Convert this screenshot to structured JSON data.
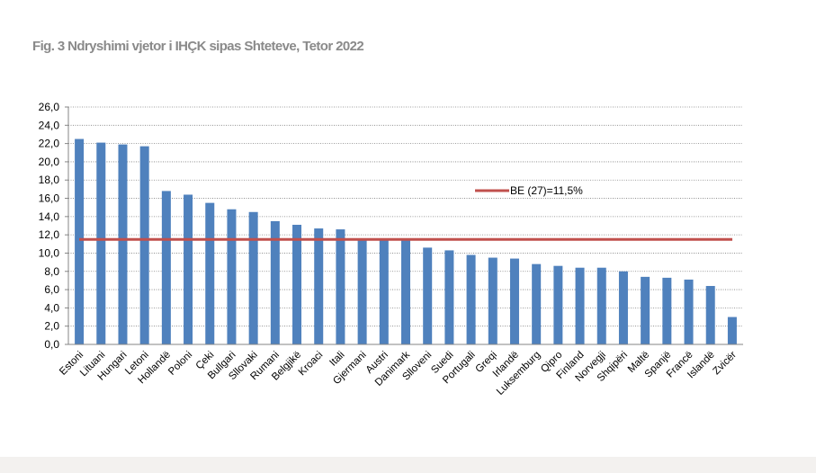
{
  "title": "Fig. 3 Ndryshimi vjetor i IHÇK sipas Shteteve, Tetor 2022",
  "colors": {
    "bar": "#4f81bd",
    "line": "#c0504d",
    "grid": "#7f7f7f",
    "title": "#8a8a8a",
    "band": "#f3f1ef"
  },
  "chart_data": {
    "type": "bar",
    "title": "Fig. 3 Ndryshimi vjetor i IHÇK sipas Shteteve, Tetor 2022",
    "xlabel": "",
    "ylabel": "",
    "ylim": [
      0,
      26
    ],
    "yticks": [
      "0,0",
      "2,0",
      "4,0",
      "6,0",
      "8,0",
      "10,0",
      "12,0",
      "14,0",
      "16,0",
      "18,0",
      "20,0",
      "22,0",
      "24,0",
      "26,0"
    ],
    "grid": true,
    "categories": [
      "Estoni",
      "Lituani",
      "Hungari",
      "Letoni",
      "Hollandë",
      "Poloni",
      "Çeki",
      "Bullgari",
      "Sllovaki",
      "Rumani",
      "Belgjikë",
      "Kroaci",
      "Itali",
      "Gjermani",
      "Austri",
      "Danimark",
      "Slloveni",
      "Suedi",
      "Portugali",
      "Greqi",
      "Irlandë",
      "Luksemburg",
      "Qipro",
      "Finland",
      "Norvegji",
      "Shqipëri",
      "Maltë",
      "Spanjë",
      "Francë",
      "Islandë",
      "Zvicër"
    ],
    "values": [
      22.5,
      22.1,
      21.9,
      21.7,
      16.8,
      16.4,
      15.5,
      14.8,
      14.5,
      13.5,
      13.1,
      12.7,
      12.6,
      11.6,
      11.5,
      11.5,
      10.6,
      10.3,
      9.8,
      9.5,
      9.4,
      8.8,
      8.6,
      8.4,
      8.4,
      8.0,
      7.4,
      7.3,
      7.1,
      6.4,
      3.0
    ],
    "reference_line": {
      "label": "BE (27)=11,5%",
      "value": 11.5
    },
    "legend": {
      "position": "upper-right",
      "entries": [
        "BE (27)=11,5%"
      ]
    }
  }
}
